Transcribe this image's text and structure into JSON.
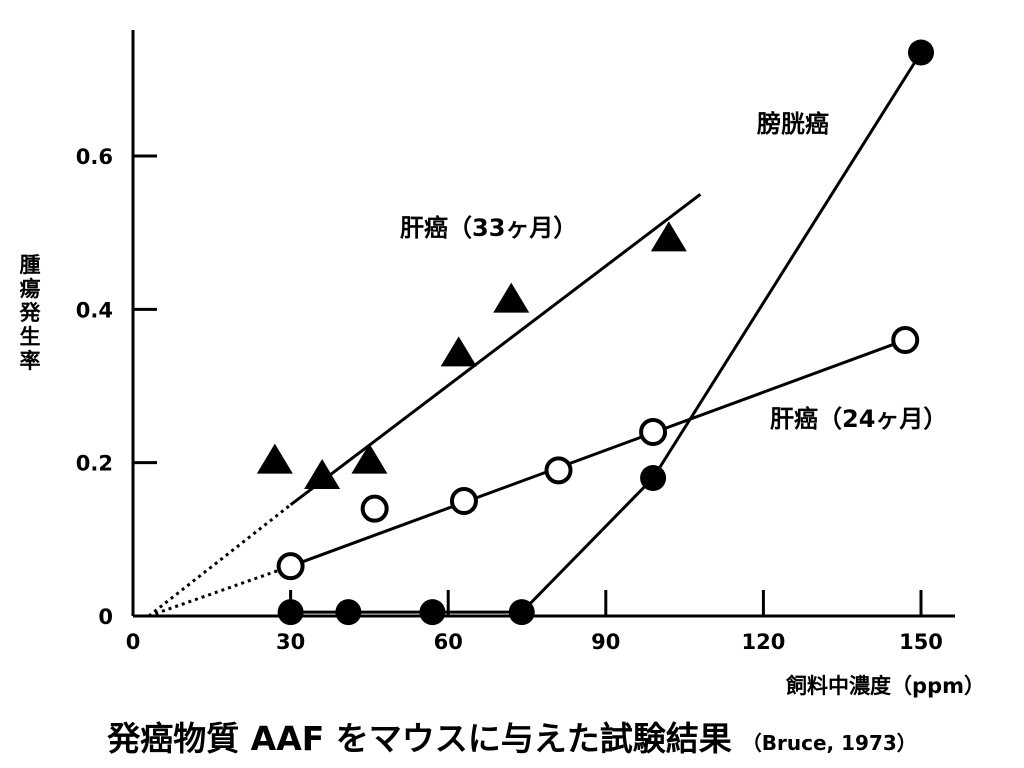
{
  "chart_data": {
    "type": "line",
    "title": "",
    "ylabel": "腫瘍発生率",
    "xlabel": "飼料中濃度（ppm）",
    "xticks": [
      0,
      30,
      60,
      90,
      120,
      150
    ],
    "yticks": [
      0,
      0.2,
      0.4,
      0.6
    ],
    "ytick_labels": [
      "0",
      "0.2",
      "0.4",
      "0.6"
    ],
    "xlim": [
      0,
      157
    ],
    "ylim": [
      0,
      0.76
    ],
    "series": [
      {
        "name": "肝癌（33ヶ月）",
        "marker": "triangle-filled",
        "x": [
          27,
          36,
          45,
          62,
          72,
          102
        ],
        "y": [
          0.2,
          0.18,
          0.2,
          0.34,
          0.41,
          0.49
        ],
        "fit_x": [
          30,
          108
        ],
        "fit_y": [
          0.145,
          0.55
        ]
      },
      {
        "name": "肝癌（24ヶ月）",
        "marker": "circle-open",
        "x": [
          30,
          46,
          63,
          81,
          99,
          147
        ],
        "y": [
          0.065,
          0.14,
          0.15,
          0.19,
          0.24,
          0.36
        ],
        "fit_x": [
          30,
          147
        ],
        "fit_y": [
          0.065,
          0.36
        ]
      },
      {
        "name": "膀胱癌",
        "marker": "circle-filled",
        "x": [
          30,
          41,
          57,
          74,
          99,
          150
        ],
        "y": [
          0.005,
          0.005,
          0.005,
          0.005,
          0.18,
          0.735
        ],
        "fit_x": [
          30,
          74,
          99,
          150
        ],
        "fit_y": [
          0.005,
          0.005,
          0.18,
          0.735
        ]
      }
    ],
    "extrapolation_lines_dotted": true,
    "grid": false,
    "legend": "inline labels"
  },
  "caption": {
    "main": "発癌物質 AAF をマウスに与えた試験結果",
    "source": "（Bruce, 1973）"
  }
}
